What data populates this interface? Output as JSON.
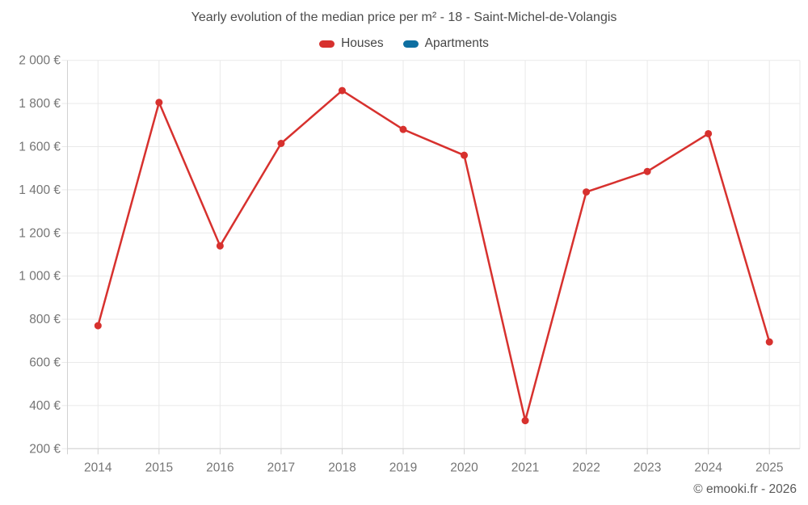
{
  "chart_data": {
    "type": "line",
    "title": "Yearly evolution of the median price per m² - 18 - Saint-Michel-de-Volangis",
    "categories": [
      "2014",
      "2015",
      "2016",
      "2017",
      "2018",
      "2019",
      "2020",
      "2021",
      "2022",
      "2023",
      "2024",
      "2025"
    ],
    "series": [
      {
        "name": "Houses",
        "color": "#d7312e",
        "visible": true,
        "values": [
          770,
          1805,
          1140,
          1615,
          1860,
          1680,
          1560,
          330,
          1390,
          1485,
          1660,
          695
        ]
      },
      {
        "name": "Apartments",
        "color": "#0e6fa1",
        "visible": false,
        "values": []
      }
    ],
    "xlabel": "",
    "ylabel": "",
    "ylim": [
      200,
      2000
    ],
    "ytick_step": 200,
    "y_tick_suffix": "€",
    "grid": true,
    "legend_position": "top"
  },
  "footer": {
    "copyright": "© emooki.fr - 2026"
  },
  "colors": {
    "grid": "#e9e9e9",
    "axis": "#d2d2d2",
    "tick_text": "#757575",
    "title_text": "#4c4c4c",
    "legend_text": "#464646",
    "copyright_text": "#595959",
    "background": "#ffffff"
  }
}
